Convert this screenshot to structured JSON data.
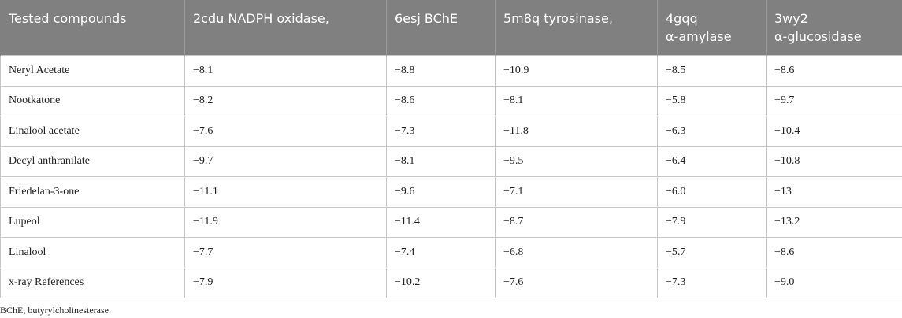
{
  "table": {
    "header": [
      "Tested compounds",
      "2cdu NADPH oxidase,",
      "6esj BChE",
      "5m8q tyrosinase,",
      "4gqq\nα-amylase",
      "3wy2\nα-glucosidase"
    ],
    "rows": [
      [
        "Neryl Acetate",
        "−8.1",
        "−8.8",
        "−10.9",
        "−8.5",
        "−8.6"
      ],
      [
        "Nootkatone",
        "−8.2",
        "−8.6",
        "−8.1",
        "−5.8",
        "−9.7"
      ],
      [
        "Linalool acetate",
        "−7.6",
        "−7.3",
        "−11.8",
        "−6.3",
        "−10.4"
      ],
      [
        "Decyl anthranilate",
        "−9.7",
        "−8.1",
        "−9.5",
        "−6.4",
        "−10.8"
      ],
      [
        "Friedelan-3-one",
        "−11.1",
        "−9.6",
        "−7.1",
        "−6.0",
        "−13"
      ],
      [
        "Lupeol",
        "−11.9",
        "−11.4",
        "−8.7",
        "−7.9",
        "−13.2"
      ],
      [
        "Linalool",
        "−7.7",
        "−7.4",
        "−6.8",
        "−5.7",
        "−8.6"
      ],
      [
        "x-ray References",
        "−7.9",
        "−10.2",
        "−7.6",
        "−7.3",
        "−9.0"
      ]
    ]
  },
  "footnote": "BChE, butyrylcholinesterase."
}
